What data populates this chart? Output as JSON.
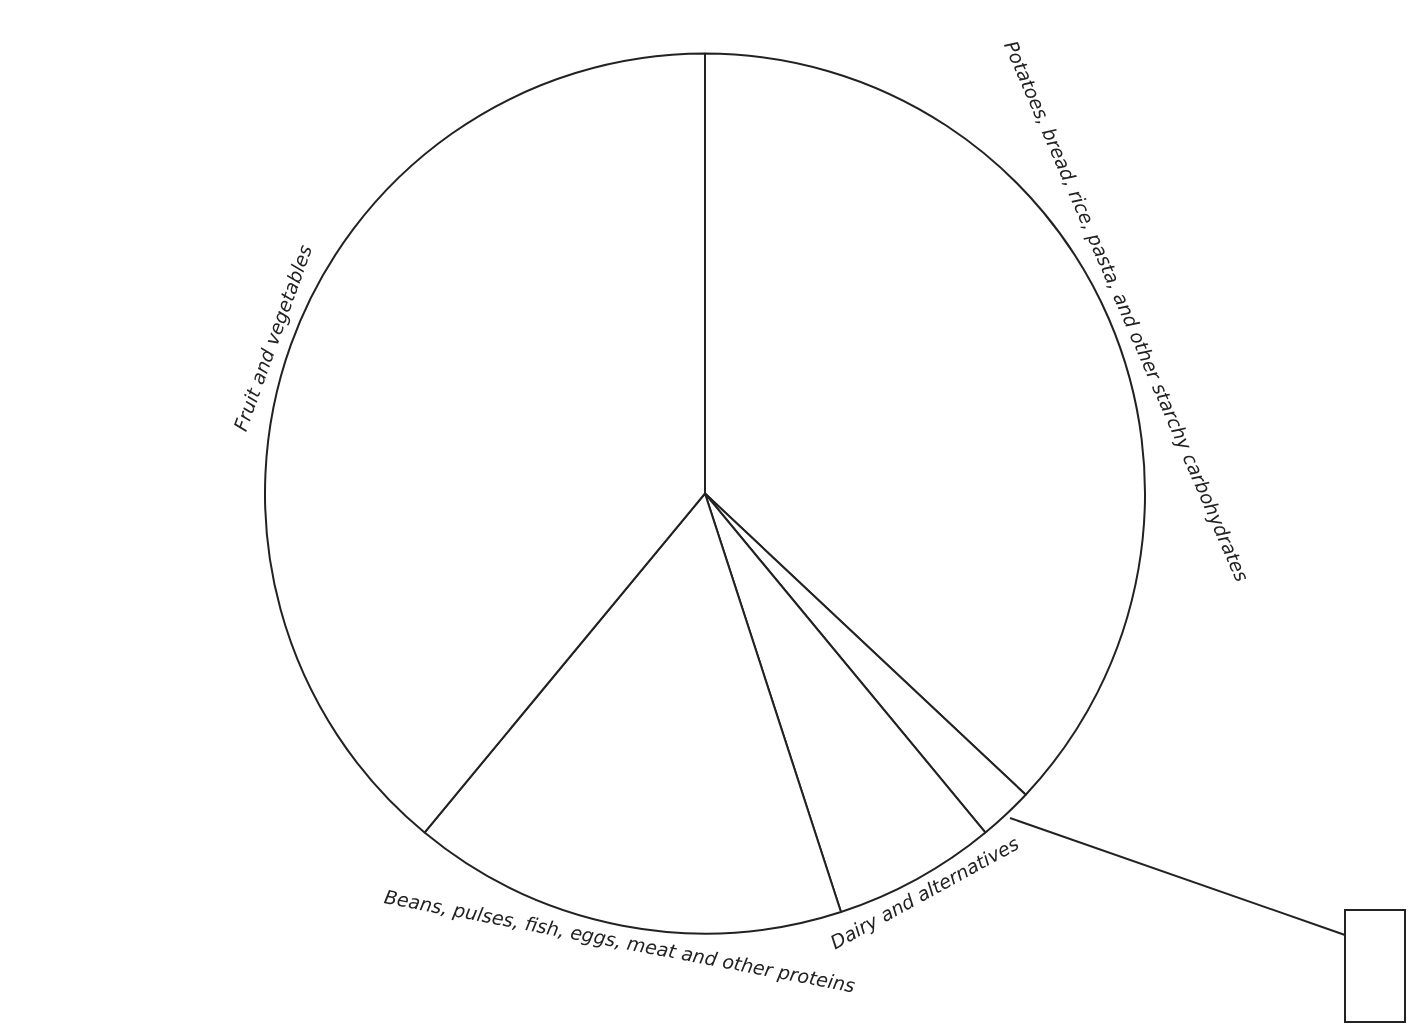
{
  "chart_data": {
    "type": "pie",
    "categories": [
      "Potatoes, bread, rice, pasta, and other starchy carbohydrates",
      null,
      "Dairy and alternatives",
      "Beans, pulses, fish, eggs, meat and other proteins",
      "Fruit and vegetables"
    ],
    "values": [
      37,
      2,
      6,
      16,
      39
    ],
    "colors": [
      "#ffffff",
      "#ffffff",
      "#ffffff",
      "#ffffff",
      "#ffffff"
    ],
    "legend": false
  }
}
